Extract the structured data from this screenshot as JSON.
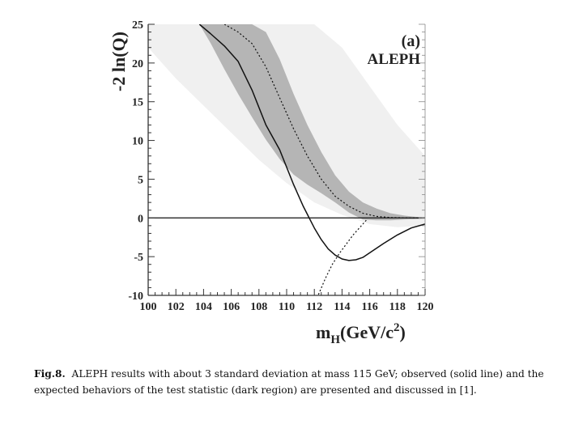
{
  "chart_data": {
    "type": "line",
    "panel_label": "(a)",
    "experiment_label": "ALEPH",
    "ylabel": "-2 ln(Q)",
    "xlabel_parts": {
      "m": "m",
      "sub": "H",
      "main": "(GeV/c",
      "sup": "2",
      "close": ")"
    },
    "xlim": [
      100,
      120
    ],
    "ylim": [
      -10,
      25
    ],
    "x_ticks": [
      100,
      102,
      104,
      106,
      108,
      110,
      112,
      114,
      116,
      118,
      120
    ],
    "y_ticks": [
      -10,
      -5,
      0,
      5,
      10,
      15,
      20,
      25
    ],
    "grid": false,
    "colors": {
      "outer_band": "#f0f0f0",
      "inner_band": "#b5b5b5",
      "line": "#111111",
      "axis": "#333333"
    },
    "series": [
      {
        "role": "observed",
        "style": "solid",
        "x": [
          103.7,
          104.5,
          105.5,
          106.5,
          107.5,
          108.5,
          109.5,
          110.5,
          111.2,
          112,
          112.5,
          113,
          113.5,
          114,
          114.5,
          115,
          115.5,
          116,
          117,
          118,
          119,
          120
        ],
        "y": [
          25,
          23.8,
          22.2,
          20.2,
          16.5,
          12,
          8.8,
          4.3,
          1.5,
          -1.3,
          -2.8,
          -4,
          -4.8,
          -5.3,
          -5.5,
          -5.4,
          -5.1,
          -4.5,
          -3.3,
          -2.2,
          -1.3,
          -0.8
        ]
      },
      {
        "role": "expected_background",
        "style": "dotted",
        "x": [
          105.5,
          106.5,
          107.5,
          108.5,
          109.5,
          110.5,
          111.5,
          112.5,
          113.5,
          114.5,
          115.5,
          116.5,
          117.5,
          118.5,
          119.5,
          120
        ],
        "y": [
          25,
          24,
          22.5,
          19.5,
          15.5,
          11.5,
          8,
          5,
          2.8,
          1.5,
          0.6,
          0.2,
          0.05,
          0.02,
          0,
          0
        ]
      },
      {
        "role": "expected_signal",
        "style": "dotted",
        "x": [
          112.3,
          112.8,
          113.3,
          113.8,
          114.3,
          114.8,
          115.3,
          115.8
        ],
        "y": [
          -9.9,
          -7.8,
          -6,
          -4.6,
          -3.4,
          -2.2,
          -1.2,
          -0.2
        ]
      }
    ],
    "bands": [
      {
        "role": "background_1sigma",
        "x": [
          103.7,
          104.5,
          105.5,
          106.5,
          107.5,
          108.5,
          109.5,
          110.5,
          111.5,
          112.5,
          113.5,
          114.5,
          115.5,
          116.5,
          117.5,
          118.5,
          119.5,
          120
        ],
        "y_upper": [
          25,
          25,
          25,
          25,
          25,
          24,
          20.5,
          16,
          12,
          8.5,
          5.5,
          3.4,
          2,
          1.2,
          0.6,
          0.3,
          0.1,
          0.05
        ],
        "y_lower": [
          25,
          22.6,
          19.2,
          16,
          13,
          10.1,
          7.6,
          5.6,
          4.3,
          3.2,
          2,
          0.7,
          -0.2,
          -0.3,
          -0.3,
          -0.2,
          -0.15,
          -0.1
        ]
      },
      {
        "role": "background_2sigma",
        "x": [
          100,
          102,
          104,
          106,
          108,
          110,
          112,
          114,
          116,
          118,
          120
        ],
        "y_upper": [
          25,
          25,
          25,
          25,
          25,
          25,
          25,
          22,
          17,
          12,
          8
        ],
        "y_lower": [
          22,
          18,
          14.5,
          11,
          7.5,
          4.5,
          2,
          0.4,
          -0.8,
          -1.2,
          -1
        ]
      }
    ]
  },
  "caption": {
    "fig_label": "Fig.8.",
    "line1": "ALEPH results with about 3 standard deviation at mass 115 GeV; observed (solid line) and the",
    "line2": "expected behaviors of the test statistic (dark region) are presented and discussed in [1]."
  }
}
